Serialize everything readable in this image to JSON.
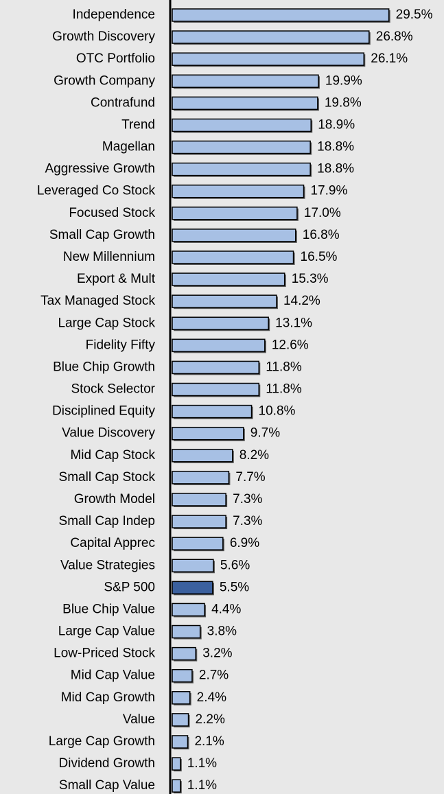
{
  "chart_data": {
    "type": "hbar",
    "categories": [
      "Independence",
      "Growth Discovery",
      "OTC Portfolio",
      "Growth Company",
      "Contrafund",
      "Trend",
      "Magellan",
      "Aggressive Growth",
      "Leveraged Co Stock",
      "Focused Stock",
      "Small Cap Growth",
      "New Millennium",
      "Export & Mult",
      "Tax Managed Stock",
      "Large Cap Stock",
      "Fidelity Fifty",
      "Blue Chip Growth",
      "Stock Selector",
      "Disciplined Equity",
      "Value Discovery",
      "Mid Cap Stock",
      "Small Cap Stock",
      "Growth Model",
      "Small Cap Indep",
      "Capital Apprec",
      "Value Strategies",
      "S&P 500",
      "Blue Chip Value",
      "Large Cap Value",
      "Low-Priced Stock",
      "Mid Cap Value",
      "Mid Cap Growth",
      "Value",
      "Large Cap Growth",
      "Dividend Growth",
      "Small Cap Value"
    ],
    "values": [
      29.5,
      26.8,
      26.1,
      19.9,
      19.8,
      18.9,
      18.8,
      18.8,
      17.9,
      17.0,
      16.8,
      16.5,
      15.3,
      14.2,
      13.1,
      12.6,
      11.8,
      11.8,
      10.8,
      9.7,
      8.2,
      7.7,
      7.3,
      7.3,
      6.9,
      5.6,
      5.5,
      4.4,
      3.8,
      3.2,
      2.7,
      2.4,
      2.2,
      2.1,
      1.1,
      1.1
    ],
    "value_labels": [
      "29.5%",
      "26.8%",
      "26.1%",
      "19.9%",
      "19.8%",
      "18.9%",
      "18.8%",
      "18.8%",
      "17.9%",
      "17.0%",
      "16.8%",
      "16.5%",
      "15.3%",
      "14.2%",
      "13.1%",
      "12.6%",
      "11.8%",
      "11.8%",
      "10.8%",
      "9.7%",
      "8.2%",
      "7.7%",
      "7.3%",
      "7.3%",
      "6.9%",
      "5.6%",
      "5.5%",
      "4.4%",
      "3.8%",
      "3.2%",
      "2.7%",
      "2.4%",
      "2.2%",
      "2.1%",
      "1.1%",
      "1.1%"
    ],
    "colors": [
      "#a7c0e4",
      "#a7c0e4",
      "#a7c0e4",
      "#a7c0e4",
      "#a7c0e4",
      "#a7c0e4",
      "#a7c0e4",
      "#a7c0e4",
      "#a7c0e4",
      "#a7c0e4",
      "#a7c0e4",
      "#a7c0e4",
      "#a7c0e4",
      "#a7c0e4",
      "#a7c0e4",
      "#a7c0e4",
      "#a7c0e4",
      "#a7c0e4",
      "#a7c0e4",
      "#a7c0e4",
      "#a7c0e4",
      "#a7c0e4",
      "#a7c0e4",
      "#a7c0e4",
      "#a7c0e4",
      "#a7c0e4",
      "#3b609e",
      "#a7c0e4",
      "#a7c0e4",
      "#a7c0e4",
      "#a7c0e4",
      "#a7c0e4",
      "#a7c0e4",
      "#a7c0e4",
      "#a7c0e4",
      "#a7c0e4"
    ],
    "xlim": [
      0,
      30
    ]
  }
}
